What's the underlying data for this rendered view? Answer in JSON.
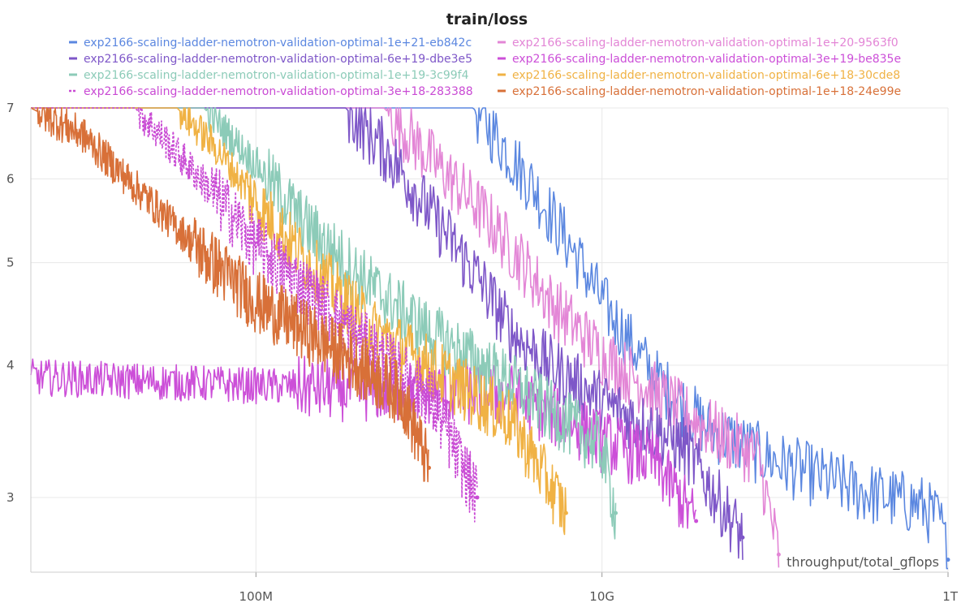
{
  "chart_data": {
    "type": "line",
    "title": "train/loss",
    "xlabel": "throughput/total_gflops",
    "ylabel": "",
    "x_scale": "log",
    "y_scale": "log",
    "xlim": [
      5000000,
      1000000000000
    ],
    "ylim": [
      2.55,
      7
    ],
    "x_ticks": [
      {
        "value": 100000000,
        "label": "100M"
      },
      {
        "value": 10000000000,
        "label": "10G"
      },
      {
        "value": 1000000000000,
        "label": "1T"
      }
    ],
    "y_ticks": [
      {
        "value": 3,
        "label": "3"
      },
      {
        "value": 4,
        "label": "4"
      },
      {
        "value": 5,
        "label": "5"
      },
      {
        "value": 6,
        "label": "6"
      },
      {
        "value": 7,
        "label": "7"
      }
    ],
    "grid": true,
    "legend_position": "top",
    "series": [
      {
        "name": "exp2166-scaling-ladder-nemotron-validation-optimal-1e+21-eb842c",
        "color": "#5b87e0",
        "dash": "solid",
        "x": [
          5000000,
          1800000000,
          2600000000,
          4000000000,
          7000000000,
          10000000000,
          20000000000,
          40000000000,
          100000000000,
          300000000000,
          700000000000,
          900000000000,
          1000000000000
        ],
        "y": [
          7,
          7,
          6.5,
          5.9,
          5.1,
          4.6,
          3.9,
          3.5,
          3.25,
          3.05,
          2.95,
          2.85,
          2.62
        ]
      },
      {
        "name": "exp2166-scaling-ladder-nemotron-validation-optimal-1e+20-9563f0",
        "color": "#e386d6",
        "dash": "solid",
        "x": [
          5000000,
          550000000,
          1000000000,
          2000000000,
          3500000000,
          5000000000,
          10000000000,
          30000000000,
          80000000000,
          105000000000
        ],
        "y": [
          7,
          7,
          6.3,
          5.6,
          5.0,
          4.6,
          4.1,
          3.6,
          3.28,
          2.65
        ]
      },
      {
        "name": "exp2166-scaling-ladder-nemotron-validation-optimal-6e+19-dbe3e5",
        "color": "#7e57c8",
        "dash": "solid",
        "x": [
          5000000,
          330000000,
          600000000,
          1000000000,
          2000000000,
          3000000000,
          5000000000,
          10000000000,
          30000000000,
          65000000000
        ],
        "y": [
          7,
          7,
          6.3,
          5.6,
          4.8,
          4.3,
          4.0,
          3.7,
          3.35,
          2.75
        ]
      },
      {
        "name": "exp2166-scaling-ladder-nemotron-validation-optimal-3e+19-be835e",
        "color": "#cc4fd8",
        "dash": "solid",
        "x": [
          5000000,
          3000000000,
          6000000000,
          10000000000,
          20000000000,
          35000000000
        ],
        "y": [
          3.9,
          3.75,
          3.55,
          3.4,
          3.25,
          2.85
        ]
      },
      {
        "name": "exp2166-scaling-ladder-nemotron-validation-optimal-1e+19-3c99f4",
        "color": "#8ccbb8",
        "dash": "solid",
        "x": [
          5000000,
          50000000,
          100000000,
          200000000,
          500000000,
          1000000000,
          3000000000,
          6000000000,
          10000000000,
          12000000000
        ],
        "y": [
          7,
          7,
          6.2,
          5.4,
          4.7,
          4.3,
          3.85,
          3.55,
          3.35,
          2.9
        ]
      },
      {
        "name": "exp2166-scaling-ladder-nemotron-validation-optimal-6e+18-30cde8",
        "color": "#f0b244",
        "dash": "solid",
        "x": [
          5000000,
          35000000,
          60000000,
          100000000,
          200000000,
          500000000,
          1000000000,
          3000000000,
          6200000000
        ],
        "y": [
          7,
          7,
          6.4,
          5.7,
          5.0,
          4.3,
          4.0,
          3.55,
          2.9
        ]
      },
      {
        "name": "exp2166-scaling-ladder-nemotron-validation-optimal-3e+18-283388",
        "color": "#c94ad4",
        "dash": "dashed",
        "x": [
          5000000,
          20000000,
          40000000,
          70000000,
          100000000,
          200000000,
          500000000,
          1000000000,
          1900000000
        ],
        "y": [
          7,
          7,
          6.2,
          5.6,
          5.2,
          4.7,
          4.1,
          3.75,
          3.0
        ]
      },
      {
        "name": "exp2166-scaling-ladder-nemotron-validation-optimal-1e+18-24e99e",
        "color": "#d87038",
        "dash": "solid",
        "x": [
          5000000,
          10000000,
          20000000,
          50000000,
          100000000,
          200000000,
          400000000,
          700000000,
          1000000000
        ],
        "y": [
          7,
          6.6,
          5.9,
          5.1,
          4.6,
          4.3,
          4.0,
          3.75,
          3.2
        ]
      }
    ]
  }
}
